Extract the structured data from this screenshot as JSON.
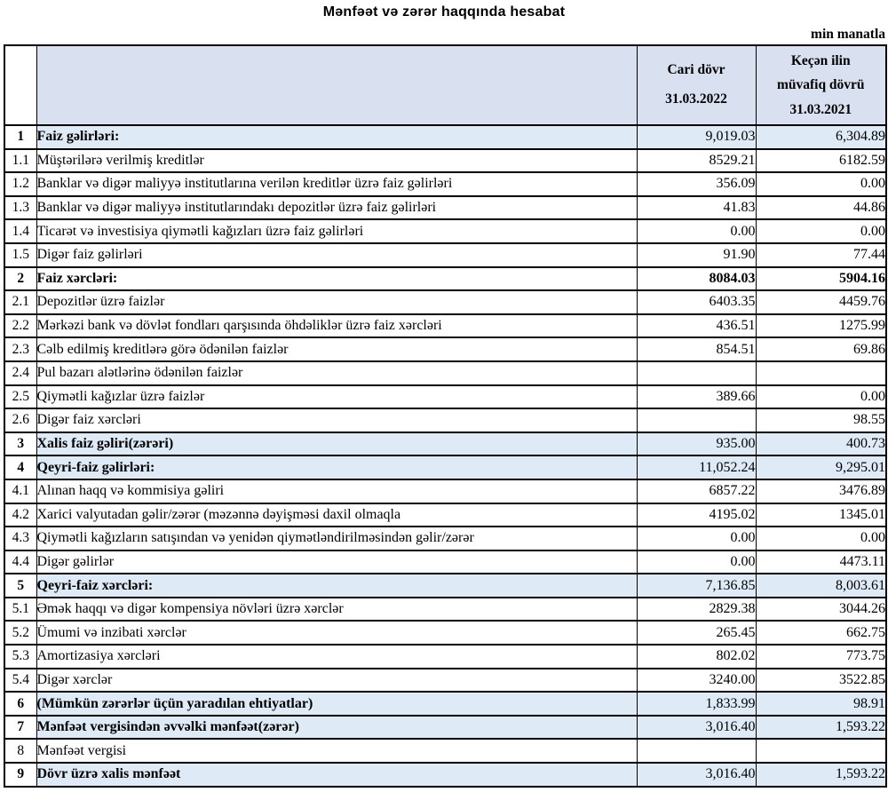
{
  "title": "Mənfəət və zərər haqqında hesabat",
  "unit_note": "min manatla",
  "colors": {
    "header_bg": "#d9e0f0",
    "highlight_bg": "#deebf7",
    "border": "#000000",
    "text": "#000000"
  },
  "table": {
    "header": {
      "current_period_label": "Cari dövr",
      "current_period_date": "31.03.2022",
      "previous_period_label_line1": "Keçən ilin",
      "previous_period_label_line2": "müvafiq dövrü",
      "previous_period_date": "31.03.2021"
    },
    "rows": [
      {
        "no": "1",
        "label": "Faiz gəlirləri:",
        "current": "9,019.03",
        "previous": "6,304.89",
        "bold": true,
        "highlight": true,
        "bold_values": false
      },
      {
        "no": "1.1",
        "label": "Müştərilərə verilmiş kreditlər",
        "current": "8529.21",
        "previous": "6182.59",
        "bold": false,
        "highlight": false,
        "bold_values": false
      },
      {
        "no": "1.2",
        "label": "Banklar və digər maliyyə institutlarına verilən kreditlər üzrə faiz gəlirləri",
        "current": "356.09",
        "previous": "0.00",
        "bold": false,
        "highlight": false,
        "bold_values": false
      },
      {
        "no": "1.3",
        "label": "Banklar və digər maliyyə institutlarındakı depozitlər üzrə faiz gəlirləri",
        "current": "41.83",
        "previous": "44.86",
        "bold": false,
        "highlight": false,
        "bold_values": false
      },
      {
        "no": "1.4",
        "label": "Ticarət və investisiya qiymətli kağızları üzrə faiz gəlirləri",
        "current": "0.00",
        "previous": "0.00",
        "bold": false,
        "highlight": false,
        "bold_values": false
      },
      {
        "no": "1.5",
        "label": "Digər faiz gəlirləri",
        "current": "91.90",
        "previous": "77.44",
        "bold": false,
        "highlight": false,
        "bold_values": false
      },
      {
        "no": "2",
        "label": "Faiz xərcləri:",
        "current": "8084.03",
        "previous": "5904.16",
        "bold": true,
        "highlight": false,
        "bold_values": true
      },
      {
        "no": "2.1",
        "label": "Depozitlər üzrə faizlər",
        "current": "6403.35",
        "previous": "4459.76",
        "bold": false,
        "highlight": false,
        "bold_values": false
      },
      {
        "no": "2.2",
        "label": "Mərkəzi bank və dövlət fondları qarşısında öhdəliklər üzrə faiz xərcləri",
        "current": "436.51",
        "previous": "1275.99",
        "bold": false,
        "highlight": false,
        "bold_values": false
      },
      {
        "no": "2.3",
        "label": "Cəlb edilmiş kreditlərə görə ödənilən faizlər",
        "current": "854.51",
        "previous": "69.86",
        "bold": false,
        "highlight": false,
        "bold_values": false
      },
      {
        "no": "2.4",
        "label": "Pul bazarı alətlərinə ödənilən faizlər",
        "current": "",
        "previous": "",
        "bold": false,
        "highlight": false,
        "bold_values": false
      },
      {
        "no": "2.5",
        "label": "Qiymətli kağızlar üzrə faizlər",
        "current": "389.66",
        "previous": "0.00",
        "bold": false,
        "highlight": false,
        "bold_values": false
      },
      {
        "no": "2.6",
        "label": "Digər faiz xərcləri",
        "current": "",
        "previous": "98.55",
        "bold": false,
        "highlight": false,
        "bold_values": false
      },
      {
        "no": "3",
        "label": "Xalis faiz gəliri(zərəri)",
        "current": "935.00",
        "previous": "400.73",
        "bold": true,
        "highlight": true,
        "bold_values": false
      },
      {
        "no": "4",
        "label": "Qeyri-faiz gəlirləri:",
        "current": "11,052.24",
        "previous": "9,295.01",
        "bold": true,
        "highlight": true,
        "bold_values": false
      },
      {
        "no": "4.1",
        "label": "Alınan haqq və kommisiya gəliri",
        "current": "6857.22",
        "previous": "3476.89",
        "bold": false,
        "highlight": false,
        "bold_values": false
      },
      {
        "no": "4.2",
        "label": "Xarici valyutadan gəlir/zərər (məzənnə dəyişməsi daxil olmaqla",
        "current": "4195.02",
        "previous": "1345.01",
        "bold": false,
        "highlight": false,
        "bold_values": false
      },
      {
        "no": "4.3",
        "label": "Qiymətli kağızların satışından və yenidən qiymətləndirilməsindən gəlir/zərər",
        "current": "0.00",
        "previous": "0.00",
        "bold": false,
        "highlight": false,
        "bold_values": false
      },
      {
        "no": "4.4",
        "label": "Digər gəlirlər",
        "current": "0.00",
        "previous": "4473.11",
        "bold": false,
        "highlight": false,
        "bold_values": false
      },
      {
        "no": "5",
        "label": "Qeyri-faiz xərcləri:",
        "current": "7,136.85",
        "previous": "8,003.61",
        "bold": true,
        "highlight": true,
        "bold_values": false
      },
      {
        "no": "5.1",
        "label": "Əmək haqqı və digər kompensiya növləri üzrə xərclər",
        "current": "2829.38",
        "previous": "3044.26",
        "bold": false,
        "highlight": false,
        "bold_values": false
      },
      {
        "no": "5.2",
        "label": "Ümumi və inzibati xərclər",
        "current": "265.45",
        "previous": "662.75",
        "bold": false,
        "highlight": false,
        "bold_values": false
      },
      {
        "no": "5.3",
        "label": "Amortizasiya xərcləri",
        "current": "802.02",
        "previous": "773.75",
        "bold": false,
        "highlight": false,
        "bold_values": false
      },
      {
        "no": "5.4",
        "label": "Digər xərclər",
        "current": "3240.00",
        "previous": "3522.85",
        "bold": false,
        "highlight": false,
        "bold_values": false
      },
      {
        "no": "6",
        "label": "(Mümkün zərərlər üçün yaradılan ehtiyatlar)",
        "current": "1,833.99",
        "previous": "98.91",
        "bold": true,
        "highlight": true,
        "bold_values": false
      },
      {
        "no": "7",
        "label": "Mənfəət vergisindən əvvəlki mənfəət(zərər)",
        "current": "3,016.40",
        "previous": "1,593.22",
        "bold": true,
        "highlight": true,
        "bold_values": false
      },
      {
        "no": "8",
        "label": "Mənfəət vergisi",
        "current": "",
        "previous": "",
        "bold": false,
        "highlight": false,
        "bold_values": false
      },
      {
        "no": "9",
        "label": "Dövr üzrə xalis mənfəət",
        "current": "3,016.40",
        "previous": "1,593.22",
        "bold": true,
        "highlight": true,
        "bold_values": false
      }
    ]
  }
}
